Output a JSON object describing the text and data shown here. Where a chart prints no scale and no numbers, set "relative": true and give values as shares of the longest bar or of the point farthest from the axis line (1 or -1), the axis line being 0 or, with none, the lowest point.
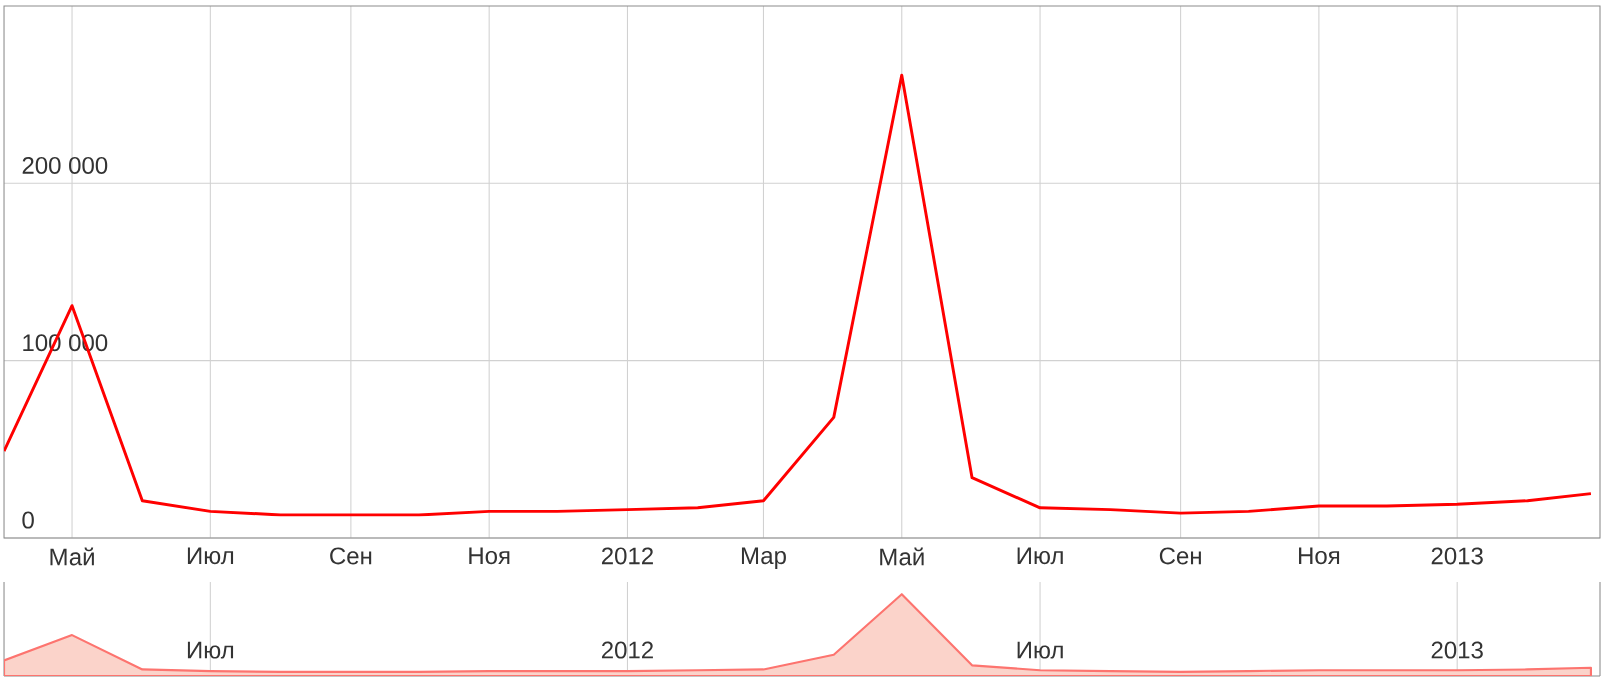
{
  "chart_data": [
    {
      "type": "line",
      "x": [
        "2011-04",
        "2011-05",
        "2011-06",
        "2011-07",
        "2011-08",
        "2011-09",
        "2011-10",
        "2011-11",
        "2011-12",
        "2012-01",
        "2012-02",
        "2012-03",
        "2012-04",
        "2012-05",
        "2012-06",
        "2012-07",
        "2012-08",
        "2012-09",
        "2012-10",
        "2012-11",
        "2012-12",
        "2013-01",
        "2013-02",
        "2013-03"
      ],
      "series": [
        {
          "color": "#ff0000",
          "values": [
            49000,
            131000,
            21000,
            15000,
            13000,
            13000,
            13000,
            15000,
            15000,
            16000,
            17000,
            21000,
            68000,
            261000,
            34000,
            17000,
            16000,
            14000,
            15000,
            18000,
            18000,
            19000,
            21000,
            25000
          ]
        }
      ],
      "xlim": [
        "2011-04-01",
        "2013-03-05"
      ],
      "ylim": [
        0,
        300000
      ],
      "xticks": [
        {
          "value": "2011-05-01",
          "label": "Май"
        },
        {
          "value": "2011-07-01",
          "label": "Июл"
        },
        {
          "value": "2011-09-01",
          "label": "Сен"
        },
        {
          "value": "2011-11-01",
          "label": "Ноя"
        },
        {
          "value": "2012-01-01",
          "label": "2012"
        },
        {
          "value": "2012-03-01",
          "label": "Мар"
        },
        {
          "value": "2012-05-01",
          "label": "Май"
        },
        {
          "value": "2012-07-01",
          "label": "Июл"
        },
        {
          "value": "2012-09-01",
          "label": "Сен"
        },
        {
          "value": "2012-11-01",
          "label": "Ноя"
        },
        {
          "value": "2013-01-01",
          "label": "2013"
        }
      ],
      "yticks": [
        0,
        {
          "value": 100000,
          "label": "100 000"
        },
        {
          "value": 200000,
          "label": "200 000"
        }
      ],
      "grid": true,
      "marker": "none",
      "line_style": "solid"
    },
    {
      "type": "area",
      "relative": true,
      "x": [
        "2011-04",
        "2011-05",
        "2011-06",
        "2011-07",
        "2011-08",
        "2011-09",
        "2011-10",
        "2011-11",
        "2011-12",
        "2012-01",
        "2012-02",
        "2012-03",
        "2012-04",
        "2012-05",
        "2012-06",
        "2012-07",
        "2012-08",
        "2012-09",
        "2012-10",
        "2012-11",
        "2012-12",
        "2013-01",
        "2013-02",
        "2013-03"
      ],
      "series": [
        {
          "color": "#fbd3ca",
          "values": [
            0.19,
            0.5,
            0.08,
            0.06,
            0.05,
            0.05,
            0.05,
            0.06,
            0.06,
            0.06,
            0.07,
            0.08,
            0.26,
            1,
            0.13,
            0.07,
            0.06,
            0.05,
            0.06,
            0.07,
            0.07,
            0.07,
            0.08,
            0.1
          ]
        }
      ],
      "xlim": [
        "2011-04-01",
        "2013-03-05"
      ],
      "xticks": [
        {
          "value": "2011-07-01",
          "label": "Июл"
        },
        {
          "value": "2012-01-01",
          "label": "2012"
        },
        {
          "value": "2012-07-01",
          "label": "Июл"
        },
        {
          "value": "2013-01-01",
          "label": "2013"
        }
      ],
      "tick_labels": "x",
      "grid": "x"
    }
  ]
}
